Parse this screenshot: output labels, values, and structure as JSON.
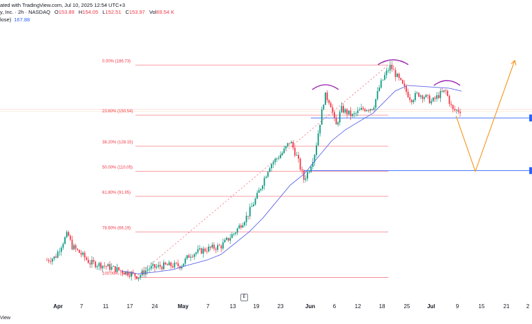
{
  "header": {
    "line1": "ated with TradingView.com, Jul 10, 2025 12:54 UTC+3",
    "line2_prefix": "y, Inc. · 2h · NASDAQ",
    "open_label": "O",
    "open": "153.89",
    "high_label": "H",
    "high": "154.05",
    "low_label": "L",
    "low": "152.51",
    "close_label": "C",
    "close": "153.97",
    "vol_label": "Vol",
    "vol": "69.54 K",
    "line3_prefix": "lose)",
    "sma_value": "167.88"
  },
  "event_marker": "E",
  "footer_text": "View",
  "colors": {
    "up": "#089981",
    "down": "#f23645",
    "fib": "#f23645",
    "sma": "#5b67e8",
    "level": "#2962ff",
    "projection": "#f7931a",
    "arc": "#9c27b0"
  },
  "chart_data": {
    "type": "candlestick",
    "x_ticks": [
      {
        "label": "Apr",
        "major": true
      },
      {
        "label": "7"
      },
      {
        "label": "11"
      },
      {
        "label": "17"
      },
      {
        "label": "24"
      },
      {
        "label": "May",
        "major": true
      },
      {
        "label": "7"
      },
      {
        "label": "13"
      },
      {
        "label": "19"
      },
      {
        "label": "23"
      },
      {
        "label": "Jun",
        "major": true
      },
      {
        "label": "6"
      },
      {
        "label": "12"
      },
      {
        "label": "18"
      },
      {
        "label": "25"
      },
      {
        "label": "Jul",
        "major": true
      },
      {
        "label": "9"
      },
      {
        "label": "15"
      },
      {
        "label": "21"
      },
      {
        "label": "2"
      }
    ],
    "fib_levels": [
      {
        "label": "0.00% (186.73)",
        "value": 186.73
      },
      {
        "label": "23.60% (150.54)",
        "value": 150.54
      },
      {
        "label": "38.20% (128.15)",
        "value": 128.15
      },
      {
        "label": "50.00% (110.05)",
        "value": 110.05
      },
      {
        "label": "61.80% (91.95)",
        "value": 91.95
      },
      {
        "label": "78.60% (66.19)",
        "value": 66.19
      },
      {
        "label": "100.00% (33.37)",
        "value": 33.37
      }
    ],
    "last_close": 153.97,
    "sma_last": 167.88,
    "support_levels": [
      148.5,
      110.5
    ],
    "projection_path": [
      {
        "date": "Jul 10",
        "price": 150
      },
      {
        "date": "Jul 15",
        "price": 110
      },
      {
        "date": "Jul 23",
        "price": 190
      }
    ],
    "patterns": [
      "head-and-shoulders"
    ],
    "ylim": [
      25,
      195
    ]
  }
}
